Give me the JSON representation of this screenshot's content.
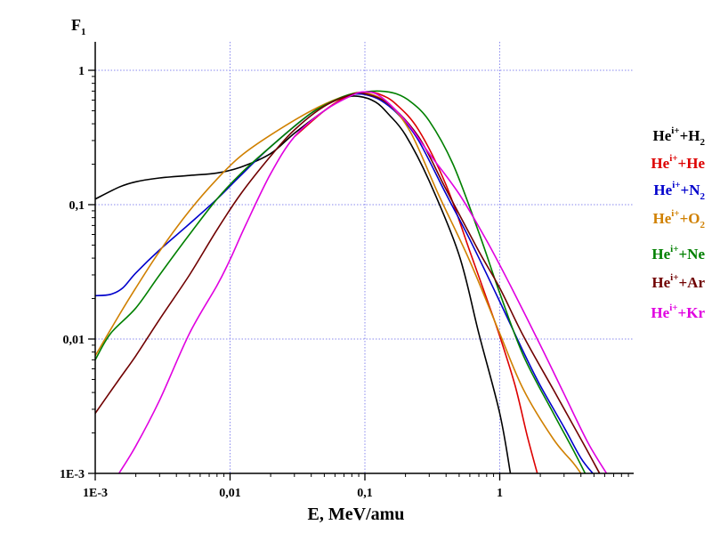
{
  "chart_data": {
    "type": "line",
    "xlabel": "E, MeV/amu",
    "ylabel": "F",
    "ylabel_sub": "1",
    "xscale": "log",
    "yscale": "log",
    "xlim": [
      0.001,
      10
    ],
    "ylim": [
      0.001,
      1
    ],
    "x_ticks": [
      {
        "value": 0.001,
        "label": "1E-3"
      },
      {
        "value": 0.01,
        "label": "0,01"
      },
      {
        "value": 0.1,
        "label": "0,1"
      },
      {
        "value": 1,
        "label": "1"
      }
    ],
    "y_ticks": [
      {
        "value": 0.001,
        "label": "1E-3"
      },
      {
        "value": 0.01,
        "label": "0,01"
      },
      {
        "value": 0.1,
        "label": "0,1"
      },
      {
        "value": 1,
        "label": "1"
      }
    ],
    "grid": true,
    "legend_position": "right",
    "series": [
      {
        "name": "He^{i+}+H_2",
        "base": "He",
        "sup": "i+",
        "tail": "+H",
        "sub": "2",
        "color": "#000000",
        "x": [
          0.001,
          0.0015,
          0.002,
          0.003,
          0.005,
          0.008,
          0.012,
          0.02,
          0.03,
          0.05,
          0.07,
          0.09,
          0.12,
          0.15,
          0.2,
          0.3,
          0.5,
          0.7,
          1.0,
          1.2
        ],
        "y": [
          0.11,
          0.135,
          0.148,
          0.158,
          0.165,
          0.172,
          0.19,
          0.24,
          0.34,
          0.5,
          0.62,
          0.64,
          0.58,
          0.47,
          0.33,
          0.15,
          0.042,
          0.011,
          0.0028,
          0.001
        ]
      },
      {
        "name": "He^{i+}+He",
        "base": "He",
        "sup": "i+",
        "tail": "+He",
        "sub": "",
        "color": "#dd0000",
        "x": [
          0.03,
          0.05,
          0.07,
          0.1,
          0.13,
          0.17,
          0.25,
          0.4,
          0.6,
          0.8,
          1.0,
          1.3,
          1.6,
          1.9
        ],
        "y": [
          0.32,
          0.5,
          0.62,
          0.69,
          0.66,
          0.56,
          0.36,
          0.14,
          0.045,
          0.02,
          0.0105,
          0.0045,
          0.0019,
          0.001
        ]
      },
      {
        "name": "He^{i+}+N_2",
        "base": "He",
        "sup": "i+",
        "tail": "+N",
        "sub": "2",
        "color": "#0000cc",
        "x": [
          0.001,
          0.0013,
          0.0016,
          0.002,
          0.003,
          0.005,
          0.008,
          0.012,
          0.02,
          0.04,
          0.06,
          0.08,
          0.1,
          0.13,
          0.18,
          0.25,
          0.4,
          0.6,
          1.0,
          1.5,
          2.0,
          3.0,
          4.0,
          4.9
        ],
        "y": [
          0.021,
          0.0215,
          0.024,
          0.031,
          0.046,
          0.072,
          0.11,
          0.165,
          0.27,
          0.48,
          0.6,
          0.66,
          0.66,
          0.6,
          0.46,
          0.3,
          0.12,
          0.055,
          0.019,
          0.008,
          0.0045,
          0.0022,
          0.0013,
          0.001
        ]
      },
      {
        "name": "He^{i+}+O_2",
        "base": "He",
        "sup": "i+",
        "tail": "+O",
        "sub": "2",
        "color": "#d08000",
        "x": [
          0.001,
          0.0015,
          0.002,
          0.003,
          0.005,
          0.008,
          0.012,
          0.02,
          0.04,
          0.07,
          0.1,
          0.15,
          0.22,
          0.35,
          0.6,
          1.0,
          1.5,
          2.5,
          3.5,
          4.0
        ],
        "y": [
          0.0075,
          0.015,
          0.024,
          0.045,
          0.09,
          0.155,
          0.23,
          0.33,
          0.5,
          0.64,
          0.68,
          0.56,
          0.34,
          0.12,
          0.038,
          0.011,
          0.0042,
          0.0018,
          0.0012,
          0.001
        ]
      },
      {
        "name": "He^{i+}+Ne",
        "base": "He",
        "sup": "i+",
        "tail": "+Ne",
        "sub": "",
        "color": "#008000",
        "x": [
          0.001,
          0.0013,
          0.002,
          0.003,
          0.005,
          0.008,
          0.012,
          0.02,
          0.04,
          0.07,
          0.1,
          0.13,
          0.17,
          0.22,
          0.3,
          0.45,
          0.7,
          1.0,
          1.5,
          2.5,
          3.5,
          4.3
        ],
        "y": [
          0.007,
          0.011,
          0.017,
          0.03,
          0.06,
          0.11,
          0.17,
          0.27,
          0.48,
          0.64,
          0.69,
          0.7,
          0.67,
          0.58,
          0.42,
          0.2,
          0.062,
          0.022,
          0.0075,
          0.0028,
          0.0015,
          0.001
        ]
      },
      {
        "name": "He^{i+}+Ar",
        "base": "He",
        "sup": "i+",
        "tail": "+Ar",
        "sub": "",
        "color": "#700000",
        "x": [
          0.001,
          0.0015,
          0.002,
          0.003,
          0.005,
          0.008,
          0.012,
          0.02,
          0.03,
          0.05,
          0.08,
          0.1,
          0.15,
          0.25,
          0.4,
          0.7,
          1.0,
          1.5,
          2.5,
          4.0,
          5.5
        ],
        "y": [
          0.0028,
          0.005,
          0.0075,
          0.014,
          0.03,
          0.065,
          0.12,
          0.23,
          0.36,
          0.54,
          0.66,
          0.67,
          0.56,
          0.32,
          0.13,
          0.045,
          0.024,
          0.0105,
          0.0042,
          0.0018,
          0.001
        ]
      },
      {
        "name": "He^{i+}+Kr",
        "base": "He",
        "sup": "i+",
        "tail": "+Kr",
        "sub": "",
        "color": "#e000e0",
        "x": [
          0.0015,
          0.002,
          0.003,
          0.005,
          0.008,
          0.01,
          0.013,
          0.02,
          0.03,
          0.05,
          0.08,
          0.1,
          0.13,
          0.2,
          0.3,
          0.5,
          0.8,
          1.2,
          2.0,
          3.0,
          4.5,
          6.2
        ],
        "y": [
          0.001,
          0.0016,
          0.0035,
          0.011,
          0.025,
          0.039,
          0.07,
          0.17,
          0.32,
          0.5,
          0.65,
          0.69,
          0.64,
          0.42,
          0.24,
          0.12,
          0.054,
          0.025,
          0.009,
          0.0039,
          0.0017,
          0.001
        ]
      }
    ]
  }
}
